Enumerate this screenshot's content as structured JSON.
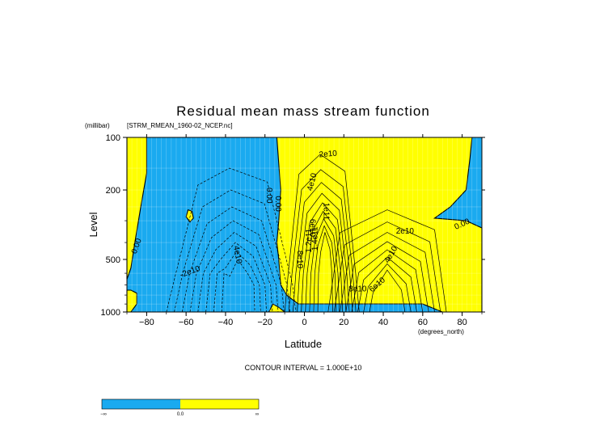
{
  "chart_data": {
    "type": "contour",
    "title": "Residual mean mass stream function",
    "dataset": "[STRM_RMEAN_1960-02_NCEP.nc]",
    "ylabel": "Level",
    "yunits": "(millibar)",
    "xlabel": "Latitude",
    "xunits": "(degrees_north)",
    "xlim": [
      -90,
      90
    ],
    "ylim": [
      100,
      1000
    ],
    "yscale": "log",
    "x_ticks": [
      -80,
      -60,
      -40,
      -20,
      0,
      20,
      40,
      60,
      80
    ],
    "x_tick_labels": [
      "−80",
      "−60",
      "−40",
      "−20",
      "0",
      "20",
      "40",
      "60",
      "80"
    ],
    "y_ticks": [
      100,
      200,
      500,
      1000
    ],
    "y_tick_labels": [
      "100",
      "200",
      "500",
      "1000"
    ],
    "grid": true,
    "contour_interval_text": "CONTOUR INTERVAL = 1.000E+10",
    "contour_labels": [
      {
        "text": "0.00",
        "lon": -85,
        "lev": 420,
        "angle": -70
      },
      {
        "text": "-2e10",
        "lon": -58,
        "lev": 590,
        "angle": -20
      },
      {
        "text": "4e10",
        "lon": -34,
        "lev": 470,
        "angle": 80
      },
      {
        "text": "0.00",
        "lon": -18,
        "lev": 215,
        "angle": 90
      },
      {
        "text": "0.00",
        "lon": -13.5,
        "lev": 240,
        "angle": 90
      },
      {
        "text": "2e10",
        "lon": 12,
        "lev": 125,
        "angle": -5
      },
      {
        "text": "4e10",
        "lon": 4,
        "lev": 180,
        "angle": -75
      },
      {
        "text": "6e10",
        "lon": 4,
        "lev": 330,
        "angle": 90
      },
      {
        "text": "8e10",
        "lon": -2.5,
        "lev": 500,
        "angle": 90
      },
      {
        "text": "1e11",
        "lon": 11,
        "lev": 265,
        "angle": 90
      },
      {
        "text": "1.2e11",
        "lon": 2.5,
        "lev": 390,
        "angle": -90
      },
      {
        "text": "1.4e11",
        "lon": 5.5,
        "lev": 380,
        "angle": -90
      },
      {
        "text": "2e10",
        "lon": 51,
        "lev": 345,
        "angle": 0
      },
      {
        "text": "0.00",
        "lon": 80,
        "lev": 315,
        "angle": -25
      },
      {
        "text": "4e10",
        "lon": 44,
        "lev": 470,
        "angle": -60
      },
      {
        "text": "8e10",
        "lon": 27,
        "lev": 740,
        "angle": 0
      },
      {
        "text": "6e10",
        "lon": 37,
        "lev": 700,
        "angle": -40
      }
    ],
    "regions": [
      {
        "name": "negative",
        "color": "#1aaaf0"
      },
      {
        "name": "positive",
        "color": "#ffff00"
      }
    ],
    "colorbar": {
      "labels": [
        "−∞",
        "0.0",
        "∞"
      ]
    }
  }
}
